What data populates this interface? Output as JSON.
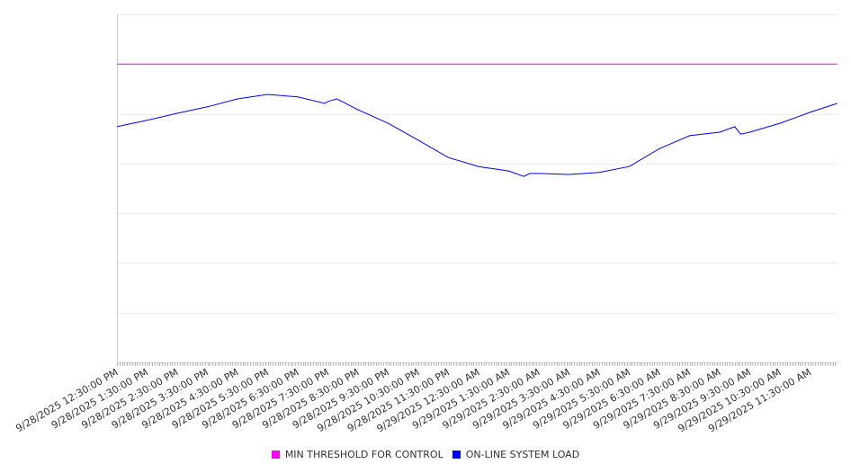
{
  "chart_data": {
    "type": "line",
    "title": "",
    "xlabel": "",
    "ylabel": "",
    "x_unit": "hours since 9/28/2025 12:30:00 PM",
    "xlim": [
      0,
      23.9
    ],
    "ylim": [
      0,
      7
    ],
    "y_gridlines": [
      0,
      1,
      2,
      3,
      4,
      5,
      6,
      7
    ],
    "y_tick_labels_shown": false,
    "grid": true,
    "legend_position": "bottom",
    "x_tick_labels": [
      "9/28/2025 12:30:00 PM",
      "9/28/2025 1:30:00 PM",
      "9/28/2025 2:30:00 PM",
      "9/28/2025 3:30:00 PM",
      "9/28/2025 4:30:00 PM",
      "9/28/2025 5:30:00 PM",
      "9/28/2025 6:30:00 PM",
      "9/28/2025 7:30:00 PM",
      "9/28/2025 8:30:00 PM",
      "9/28/2025 9:30:00 PM",
      "9/28/2025 10:30:00 PM",
      "9/28/2025 11:30:00 PM",
      "9/29/2025 12:30:00 AM",
      "9/29/2025 1:30:00 AM",
      "9/29/2025 2:30:00 AM",
      "9/29/2025 3:30:00 AM",
      "9/29/2025 4:30:00 AM",
      "9/29/2025 5:30:00 AM",
      "9/29/2025 6:30:00 AM",
      "9/29/2025 7:30:00 AM",
      "9/29/2025 8:30:00 AM",
      "9/29/2025 9:30:00 AM",
      "9/29/2025 10:30:00 AM",
      "9/29/2025 11:30:00 AM"
    ],
    "series": [
      {
        "name": "MIN THRESHOLD FOR CONTROL",
        "color": "#ff00ff",
        "x": [
          0,
          23.9
        ],
        "values": [
          6.0,
          6.0
        ]
      },
      {
        "name": "ON-LINE SYSTEM LOAD",
        "color": "#0000ff",
        "x": [
          0,
          1,
          2,
          3,
          4,
          5,
          6,
          6.9,
          7,
          7.3,
          8,
          9,
          10,
          11,
          12,
          13,
          13.5,
          13.7,
          14,
          15,
          16,
          17,
          18,
          19,
          20,
          20.5,
          20.7,
          21,
          22,
          23,
          23.9
        ],
        "values": [
          4.74,
          4.87,
          5.01,
          5.14,
          5.3,
          5.39,
          5.34,
          5.21,
          5.25,
          5.3,
          5.08,
          4.81,
          4.47,
          4.12,
          3.94,
          3.85,
          3.74,
          3.8,
          3.8,
          3.78,
          3.82,
          3.94,
          4.3,
          4.56,
          4.63,
          4.74,
          4.59,
          4.63,
          4.81,
          5.03,
          5.21
        ]
      }
    ]
  }
}
